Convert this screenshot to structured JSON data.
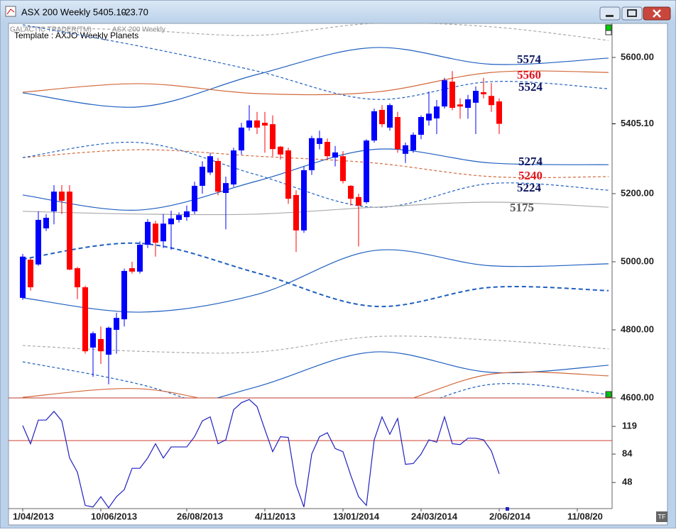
{
  "window": {
    "title": "ASX 200 Weekly 5405.10",
    "change": "-23.70"
  },
  "chart_data": {
    "type": "candlestick",
    "header": {
      "app": "GALACTIC TRADER(TM)",
      "symbol": "ASX 200 Weekly",
      "template": "Template : AXJO Weekly Planets"
    },
    "up_color": "#0000ff",
    "down_color": "#ff0000",
    "open": [
      4894,
      5006,
      4992,
      5098,
      5148,
      5206,
      5206,
      4981,
      4925,
      4748,
      4773,
      4727,
      4800,
      4831,
      4981,
      4971,
      5050,
      5112,
      5060,
      5110,
      5123,
      5131,
      5148,
      5223,
      5262,
      5296,
      5202,
      5227,
      5327,
      5394,
      5415,
      5408,
      5404,
      5338,
      5327,
      5196,
      5092,
      5269,
      5346,
      5352,
      5306,
      5310,
      5223,
      5190,
      5175,
      5356,
      5446,
      5394,
      5425,
      5317,
      5327,
      5373,
      5415,
      5421,
      5456,
      5529,
      5462,
      5452,
      5467,
      5498,
      5487,
      5471
    ],
    "high": [
      5023,
      5010,
      5148,
      5140,
      5225,
      5225,
      5225,
      4985,
      4930,
      4795,
      4810,
      4810,
      4850,
      4980,
      5000,
      5060,
      5125,
      5120,
      5140,
      5150,
      5145,
      5165,
      5235,
      5295,
      5320,
      5305,
      5250,
      5335,
      5408,
      5460,
      5440,
      5440,
      5430,
      5340,
      5335,
      5210,
      5280,
      5370,
      5385,
      5362,
      5340,
      5325,
      5225,
      5200,
      5360,
      5450,
      5460,
      5465,
      5440,
      5350,
      5380,
      5430,
      5500,
      5475,
      5540,
      5560,
      5480,
      5490,
      5515,
      5540,
      5525,
      5480
    ],
    "low": [
      4888,
      4915,
      4988,
      5090,
      5110,
      5140,
      4975,
      4890,
      4730,
      4662,
      4700,
      4640,
      4730,
      4810,
      4965,
      4965,
      5040,
      5015,
      5040,
      5035,
      5115,
      5120,
      5140,
      5200,
      5255,
      5195,
      5095,
      5220,
      5315,
      5385,
      5375,
      5320,
      5310,
      5300,
      5170,
      5029,
      5085,
      5255,
      5330,
      5300,
      5280,
      5230,
      5165,
      5045,
      5170,
      5350,
      5395,
      5385,
      5320,
      5290,
      5320,
      5360,
      5400,
      5375,
      5450,
      5445,
      5420,
      5420,
      5375,
      5480,
      5440,
      5375
    ],
    "close": [
      5015,
      4925,
      5123,
      5129,
      5206,
      5179,
      4977,
      4925,
      4737,
      4790,
      4737,
      4806,
      4835,
      4973,
      4971,
      5050,
      5117,
      5056,
      5112,
      5127,
      5137,
      5148,
      5223,
      5279,
      5310,
      5206,
      5231,
      5327,
      5394,
      5415,
      5394,
      5400,
      5331,
      5315,
      5185,
      5092,
      5269,
      5363,
      5363,
      5310,
      5321,
      5237,
      5185,
      5165,
      5356,
      5442,
      5404,
      5460,
      5331,
      5342,
      5373,
      5425,
      5435,
      5456,
      5533,
      5452,
      5456,
      5477,
      5502,
      5492,
      5460,
      5405.1
    ],
    "ylim": [
      4600,
      5700
    ],
    "yticks": [
      {
        "value": 4600,
        "label": "4600.00"
      },
      {
        "value": 4800,
        "label": "4800.00"
      },
      {
        "value": 5000,
        "label": "5000.00"
      },
      {
        "value": 5200,
        "label": "5200.00"
      },
      {
        "value": 5600,
        "label": "5600.00"
      }
    ],
    "last_price": {
      "value": 5405.1,
      "label": "5405.10"
    },
    "xticks": [
      {
        "value": 0,
        "label": "1/04/2013"
      },
      {
        "value": 10,
        "label": "10/06/2013"
      },
      {
        "value": 21,
        "label": "26/08/2013"
      },
      {
        "value": 31,
        "label": "4/11/2013"
      },
      {
        "value": 41,
        "label": "13/01/2014"
      },
      {
        "value": 51,
        "label": "24/03/2014"
      },
      {
        "value": 61,
        "label": "2/06/2014"
      },
      {
        "value": 71,
        "label": "11/08/20"
      }
    ],
    "band_x": [
      0,
      15,
      30,
      45,
      60,
      75
    ],
    "bands": [
      {
        "color": "#aaaaaa",
        "dash": true,
        "values": [
          5690,
          5680,
          5665,
          5700,
          5690,
          5650
        ]
      },
      {
        "color": "#1f5fbf",
        "dash": false,
        "values": [
          5496,
          5455,
          5550,
          5629,
          5580,
          5598
        ]
      },
      {
        "color": "#d2693c",
        "dash": false,
        "values": [
          5498,
          5523,
          5494,
          5498,
          5556,
          5556
        ]
      },
      {
        "color": "#1f5fbf",
        "dash": true,
        "values": [
          5696,
          5633,
          5560,
          5477,
          5529,
          5508
        ]
      },
      {
        "color": "#1f5fbf",
        "dash": false,
        "values": [
          5196,
          5152,
          5237,
          5330,
          5290,
          5285
        ]
      },
      {
        "color": "#d2693c",
        "dash": true,
        "values": [
          5306,
          5329,
          5310,
          5290,
          5250,
          5250
        ]
      },
      {
        "color": "#1f5fbf",
        "dash": true,
        "values": [
          5306,
          5350,
          5255,
          5160,
          5230,
          5210
        ]
      },
      {
        "color": "#aaaaaa",
        "dash": false,
        "values": [
          5148,
          5140,
          5140,
          5160,
          5175,
          5160
        ]
      },
      {
        "color": "#1f5fbf",
        "dash": true,
        "values": [
          5008,
          5054,
          4967,
          4869,
          4925,
          4915
        ]
      },
      {
        "color": "#1f5fbf",
        "dash": false,
        "values": [
          4894,
          4852,
          4904,
          5033,
          4988,
          4994
        ]
      },
      {
        "color": "#aaaaaa",
        "dash": true,
        "values": [
          4754,
          4737,
          4735,
          4780,
          4770,
          4744
        ]
      },
      {
        "color": "#1f5fbf",
        "dash": false,
        "values": [
          4560,
          4550,
          4633,
          4735,
          4675,
          4696
        ]
      },
      {
        "color": "#1f5fbf",
        "dash": true,
        "values": [
          4706,
          4640,
          4540,
          4540,
          4640,
          4610
        ]
      },
      {
        "color": "#d2693c",
        "dash": false,
        "values": [
          4602,
          4627,
          4570,
          4570,
          4670,
          4665
        ]
      }
    ],
    "levels": [
      {
        "value": 5574,
        "color": "#0a1460"
      },
      {
        "value": 5560,
        "color": "#e0141e"
      },
      {
        "value": 5524,
        "color": "#0a1460"
      },
      {
        "value": 5274,
        "color": "#0a1460"
      },
      {
        "value": 5240,
        "color": "#e0141e"
      },
      {
        "value": 5224,
        "color": "#0a1460"
      },
      {
        "value": 5175,
        "color": "#555555"
      }
    ],
    "oscillator": {
      "color": "#2020c0",
      "ref_line": 101,
      "ref_color": "#d04030",
      "ylim": [
        15,
        155
      ],
      "yticks": [
        48,
        84,
        119
      ],
      "values": [
        120,
        97,
        127,
        127,
        138,
        126,
        79,
        61,
        19,
        17,
        30,
        16,
        30,
        39,
        66,
        66,
        79,
        97,
        79,
        93,
        93,
        93,
        106,
        126,
        131,
        97,
        102,
        140,
        149,
        153,
        144,
        115,
        87,
        106,
        105,
        45,
        17,
        84,
        106,
        111,
        91,
        87,
        57,
        30,
        19,
        102,
        131,
        109,
        129,
        71,
        72,
        84,
        102,
        99,
        131,
        97,
        96,
        104,
        104,
        102,
        88,
        59
      ]
    }
  }
}
